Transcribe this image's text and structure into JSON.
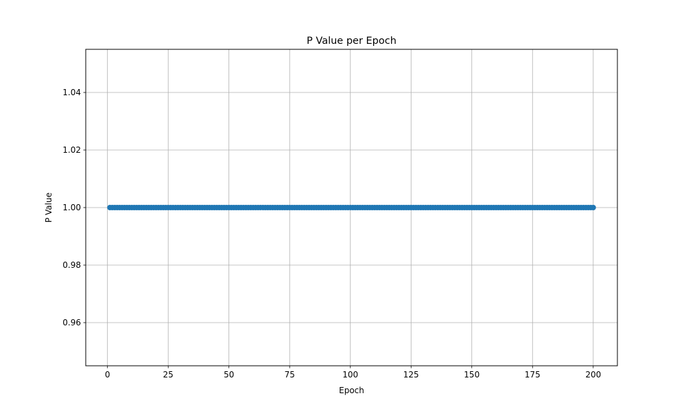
{
  "chart_data": {
    "type": "line",
    "title": "P Value per Epoch",
    "xlabel": "Epoch",
    "ylabel": "P Value",
    "xlim": [
      -8.95,
      209.95
    ],
    "ylim": [
      0.945,
      1.055
    ],
    "xticks": [
      0,
      25,
      50,
      75,
      100,
      125,
      150,
      175,
      200
    ],
    "xtick_labels": [
      "0",
      "25",
      "50",
      "75",
      "100",
      "125",
      "150",
      "175",
      "200"
    ],
    "yticks": [
      0.96,
      0.98,
      1.0,
      1.02,
      1.04
    ],
    "ytick_labels": [
      "0.96",
      "0.98",
      "1.00",
      "1.02",
      "1.04"
    ],
    "grid": true,
    "marker": "circle",
    "series": [
      {
        "color": "#1f77b4",
        "x_start": 1,
        "x_end": 200,
        "x_step": 1,
        "constant_y": 1.0
      }
    ]
  }
}
